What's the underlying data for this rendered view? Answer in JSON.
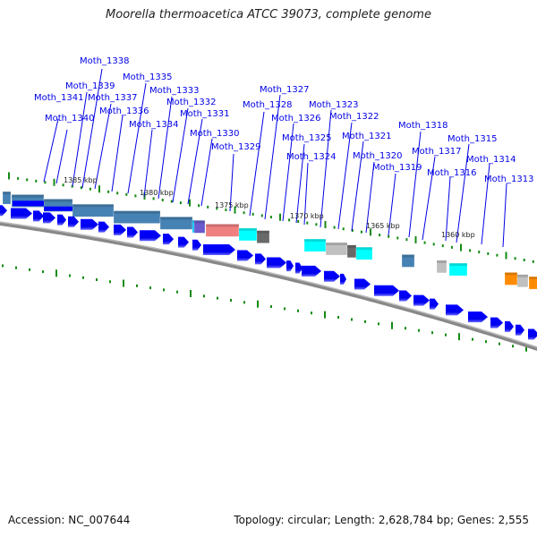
{
  "title": "Moorella thermoacetica ATCC 39073, complete genome",
  "footer": {
    "accession": "Accession: NC_007644",
    "summary": "Topology: circular; Length: 2,628,784 bp; Genes: 2,555"
  },
  "colors": {
    "label": "#0000e6",
    "gene": "#0000ff",
    "tick": "#138a13",
    "backbone_shadow": "#808080"
  },
  "kbp_markers": [
    "1385 kbp",
    "1380 kbp",
    "1375 kbp",
    "1370 kbp",
    "1365 kbp",
    "1360 kbp"
  ],
  "gene_labels": [
    {
      "name": "Moth_1341"
    },
    {
      "name": "Moth_1340"
    },
    {
      "name": "Moth_1339"
    },
    {
      "name": "Moth_1338"
    },
    {
      "name": "Moth_1337"
    },
    {
      "name": "Moth_1336"
    },
    {
      "name": "Moth_1335"
    },
    {
      "name": "Moth_1334"
    },
    {
      "name": "Moth_1333"
    },
    {
      "name": "Moth_1332"
    },
    {
      "name": "Moth_1331"
    },
    {
      "name": "Moth_1330"
    },
    {
      "name": "Moth_1329"
    },
    {
      "name": "Moth_1328"
    },
    {
      "name": "Moth_1327"
    },
    {
      "name": "Moth_1326"
    },
    {
      "name": "Moth_1325"
    },
    {
      "name": "Moth_1324"
    },
    {
      "name": "Moth_1323"
    },
    {
      "name": "Moth_1322"
    },
    {
      "name": "Moth_1321"
    },
    {
      "name": "Moth_1320"
    },
    {
      "name": "Moth_1319"
    },
    {
      "name": "Moth_1318"
    },
    {
      "name": "Moth_1317"
    },
    {
      "name": "Moth_1316"
    },
    {
      "name": "Moth_1315"
    },
    {
      "name": "Moth_1314"
    },
    {
      "name": "Moth_1313"
    }
  ],
  "feature_boxes": [
    {
      "category": "steelblue",
      "color": "#4682b4"
    },
    {
      "category": "blue",
      "color": "#0000ff"
    },
    {
      "category": "deepskyblue",
      "color": "#00bfff"
    },
    {
      "category": "slateblue",
      "color": "#6a5acd"
    },
    {
      "category": "lightcoral",
      "color": "#f08080"
    },
    {
      "category": "cyan",
      "color": "#00ffff"
    },
    {
      "category": "dimgray",
      "color": "#696969"
    },
    {
      "category": "silver",
      "color": "#c0c0c0"
    },
    {
      "category": "darkorange",
      "color": "#ff8c00"
    }
  ]
}
